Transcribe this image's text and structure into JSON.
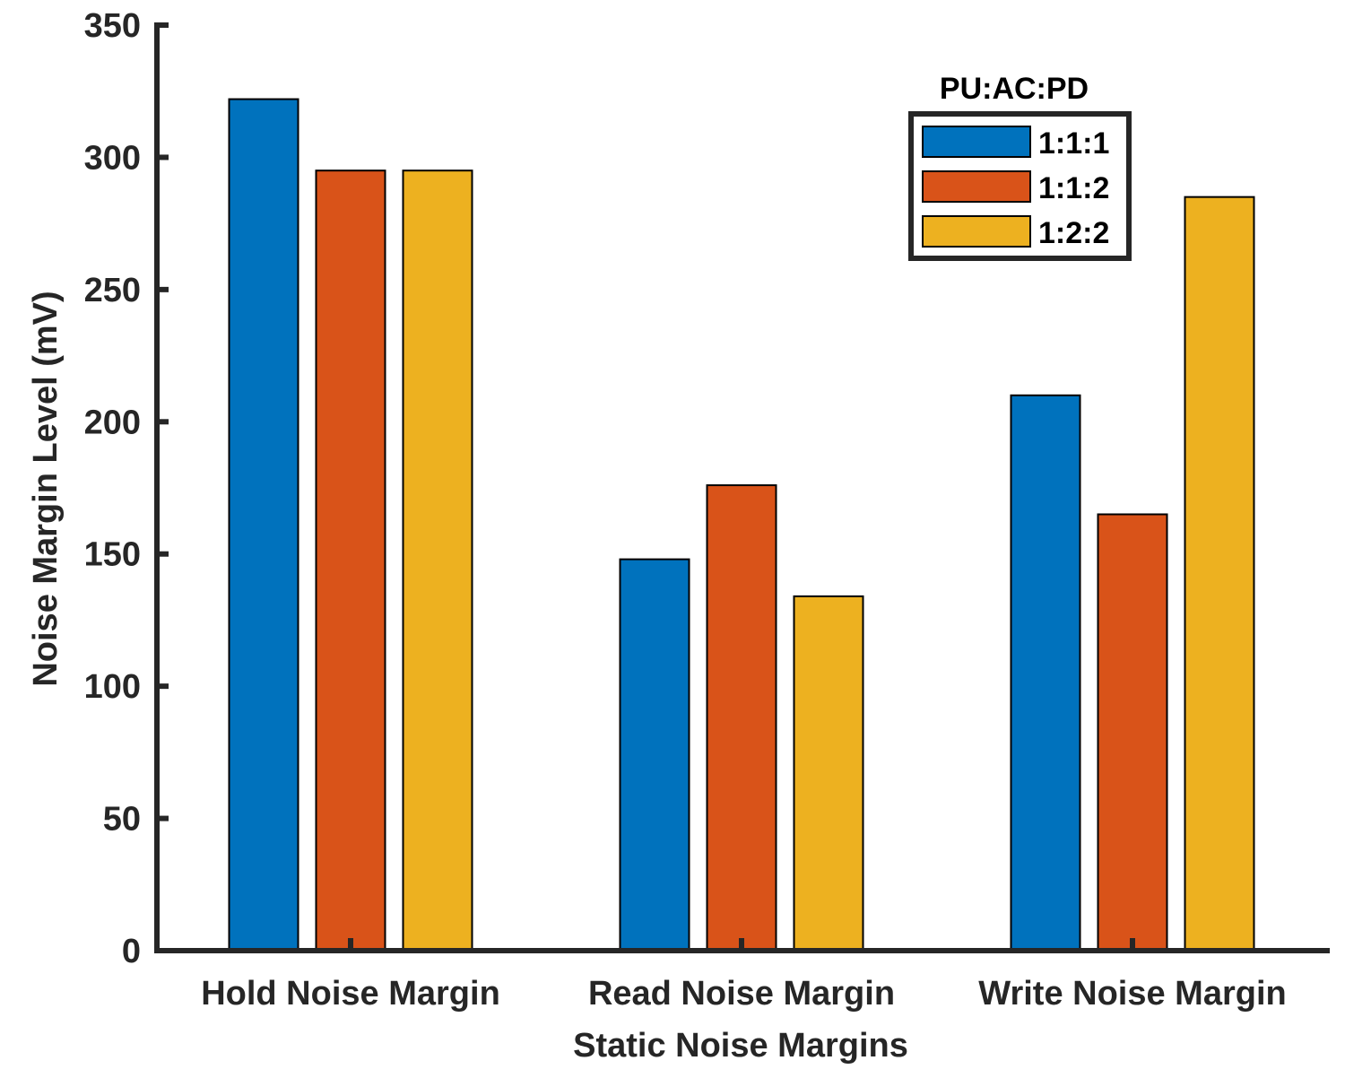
{
  "chart_data": {
    "type": "bar",
    "title": "",
    "xlabel": "Static Noise Margins",
    "ylabel": "Noise Margin Level (mV)",
    "ylim": [
      0,
      350
    ],
    "yticks": [
      0,
      50,
      100,
      150,
      200,
      250,
      300,
      350
    ],
    "grid": false,
    "categories": [
      "Hold Noise Margin",
      "Read Noise Margin",
      "Write Noise Margin"
    ],
    "series": [
      {
        "name": "1:1:1",
        "color": "#0072BD",
        "values": [
          322,
          148,
          210
        ]
      },
      {
        "name": "1:1:2",
        "color": "#D95319",
        "values": [
          295,
          176,
          165
        ]
      },
      {
        "name": "1:2:2",
        "color": "#EDB120",
        "values": [
          295,
          134,
          285
        ]
      }
    ],
    "legend": {
      "title": "PU:AC:PD",
      "placement": "top-right"
    }
  }
}
